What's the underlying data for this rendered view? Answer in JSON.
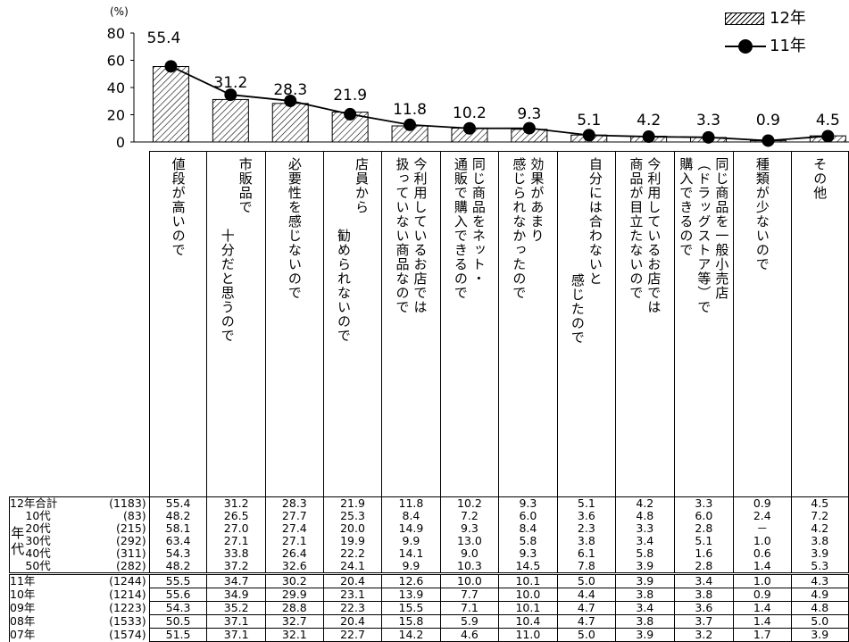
{
  "chart_data": {
    "type": "bar+line",
    "y_unit": "(%)",
    "ylim": [
      0,
      80
    ],
    "yticks": [
      "80",
      "60",
      "40",
      "20",
      "0"
    ],
    "legend": {
      "bar": "12年",
      "line": "11年",
      "placement": "top-right"
    },
    "categories": [
      "値段が高いので",
      "市販品で十分だと思うので",
      "必要性を感じないので",
      "店員から勧められないので",
      "今利用しているお店では扱っていない商品なので",
      "同じ商品をネット・通販で購入できるので",
      "効果があまり感じられなかったので",
      "自分には合わないと感じたので",
      "今利用しているお店では商品が目立たないので",
      "同じ商品を一般小売店（ドラッグストア等）で購入できるので",
      "種類が少ないので",
      "その他"
    ],
    "series": [
      {
        "name": "12年",
        "kind": "bar",
        "values": [
          55.4,
          31.2,
          28.3,
          21.9,
          11.8,
          10.2,
          9.3,
          5.1,
          4.2,
          3.3,
          0.9,
          4.5
        ]
      },
      {
        "name": "11年",
        "kind": "line",
        "values": [
          55.5,
          34.7,
          30.2,
          20.4,
          12.6,
          10.0,
          10.1,
          5.0,
          3.9,
          3.4,
          1.0,
          4.3
        ]
      }
    ],
    "data_labels": [
      "55.4",
      "31.2",
      "28.3",
      "21.9",
      "11.8",
      "10.2",
      "9.3",
      "5.1",
      "4.2",
      "3.3",
      "0.9",
      "4.5"
    ]
  },
  "header_labels": [
    [
      "値段が高いので"
    ],
    [
      "市販品で",
      "十分だと思うので"
    ],
    [
      "必要性を感じないので"
    ],
    [
      "店員から",
      "勧められないので"
    ],
    [
      "今利用しているお店では",
      "扱っていない商品なので"
    ],
    [
      "同じ商品をネット・",
      "通販で購入できるので"
    ],
    [
      "効果があまり",
      "感じられなかったので"
    ],
    [
      "自分には合わないと",
      "感じたので"
    ],
    [
      "今利用しているお店では",
      "商品が目立たないので"
    ],
    [
      "同じ商品を一般小売店",
      "（ドラッグストア等）で",
      "購入できるので"
    ],
    [
      "種類が少ないので"
    ],
    [
      "その他"
    ]
  ],
  "table": {
    "age_group_label": [
      "年",
      "代"
    ],
    "rows_2012": [
      {
        "label": "12年合計",
        "n": "(1183)",
        "values": [
          "55.4",
          "31.2",
          "28.3",
          "21.9",
          "11.8",
          "10.2",
          "9.3",
          "5.1",
          "4.2",
          "3.3",
          "0.9",
          "4.5"
        ]
      },
      {
        "label": "10代",
        "n": "(83)",
        "values": [
          "48.2",
          "26.5",
          "27.7",
          "25.3",
          "8.4",
          "7.2",
          "6.0",
          "3.6",
          "4.8",
          "6.0",
          "2.4",
          "7.2"
        ]
      },
      {
        "label": "20代",
        "n": "(215)",
        "values": [
          "58.1",
          "27.0",
          "27.4",
          "20.0",
          "14.9",
          "9.3",
          "8.4",
          "2.3",
          "3.3",
          "2.8",
          "－",
          "4.2"
        ]
      },
      {
        "label": "30代",
        "n": "(292)",
        "values": [
          "63.4",
          "27.1",
          "27.1",
          "19.9",
          "9.9",
          "13.0",
          "5.8",
          "3.8",
          "3.4",
          "5.1",
          "1.0",
          "3.8"
        ]
      },
      {
        "label": "40代",
        "n": "(311)",
        "values": [
          "54.3",
          "33.8",
          "26.4",
          "22.2",
          "14.1",
          "9.0",
          "9.3",
          "6.1",
          "5.8",
          "1.6",
          "0.6",
          "3.9"
        ]
      },
      {
        "label": "50代",
        "n": "(282)",
        "values": [
          "48.2",
          "37.2",
          "32.6",
          "24.1",
          "9.9",
          "10.3",
          "14.5",
          "7.8",
          "3.9",
          "2.8",
          "1.4",
          "5.3"
        ]
      }
    ],
    "rows_years": [
      {
        "label": "11年",
        "n": "(1244)",
        "values": [
          "55.5",
          "34.7",
          "30.2",
          "20.4",
          "12.6",
          "10.0",
          "10.1",
          "5.0",
          "3.9",
          "3.4",
          "1.0",
          "4.3"
        ]
      },
      {
        "label": "10年",
        "n": "(1214)",
        "values": [
          "55.6",
          "34.9",
          "29.9",
          "23.1",
          "13.9",
          "7.7",
          "10.0",
          "4.4",
          "3.8",
          "3.8",
          "0.9",
          "4.9"
        ]
      },
      {
        "label": "09年",
        "n": "(1223)",
        "values": [
          "54.3",
          "35.2",
          "28.8",
          "22.3",
          "15.5",
          "7.1",
          "10.1",
          "4.7",
          "3.4",
          "3.6",
          "1.4",
          "4.8"
        ]
      },
      {
        "label": "08年",
        "n": "(1533)",
        "values": [
          "50.5",
          "37.1",
          "32.7",
          "20.4",
          "15.8",
          "5.9",
          "10.4",
          "4.7",
          "3.8",
          "3.7",
          "1.4",
          "5.0"
        ]
      },
      {
        "label": "07年",
        "n": "(1574)",
        "values": [
          "51.5",
          "37.1",
          "32.1",
          "22.7",
          "14.2",
          "4.6",
          "11.0",
          "5.0",
          "3.9",
          "3.2",
          "1.7",
          "3.9"
        ]
      }
    ]
  }
}
